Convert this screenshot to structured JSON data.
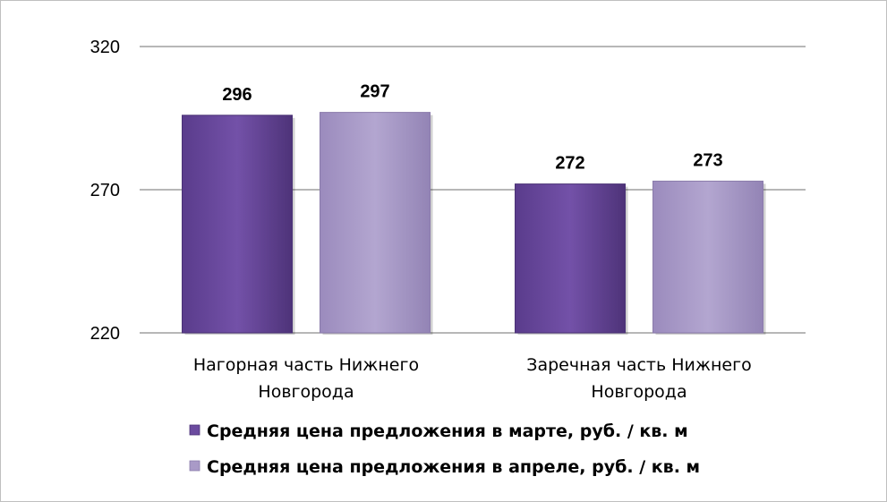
{
  "chart_data": {
    "type": "bar",
    "categories": [
      [
        "Нагорная часть Нижнего",
        "Новгорода"
      ],
      [
        "Заречная часть Нижнего",
        "Новгорода"
      ]
    ],
    "series": [
      {
        "name": "Средняя цена предложения в марте, руб. / кв. м",
        "values": [
          296,
          272
        ],
        "color": "#6b4b9f"
      },
      {
        "name": "Средняя цена предложения в апреле, руб. / кв. м",
        "values": [
          297,
          273
        ],
        "color": "#a99ac7"
      }
    ],
    "yticks": [
      220,
      270,
      320
    ],
    "ylim": [
      220,
      320
    ],
    "grid": true,
    "legend_position": "bottom"
  }
}
